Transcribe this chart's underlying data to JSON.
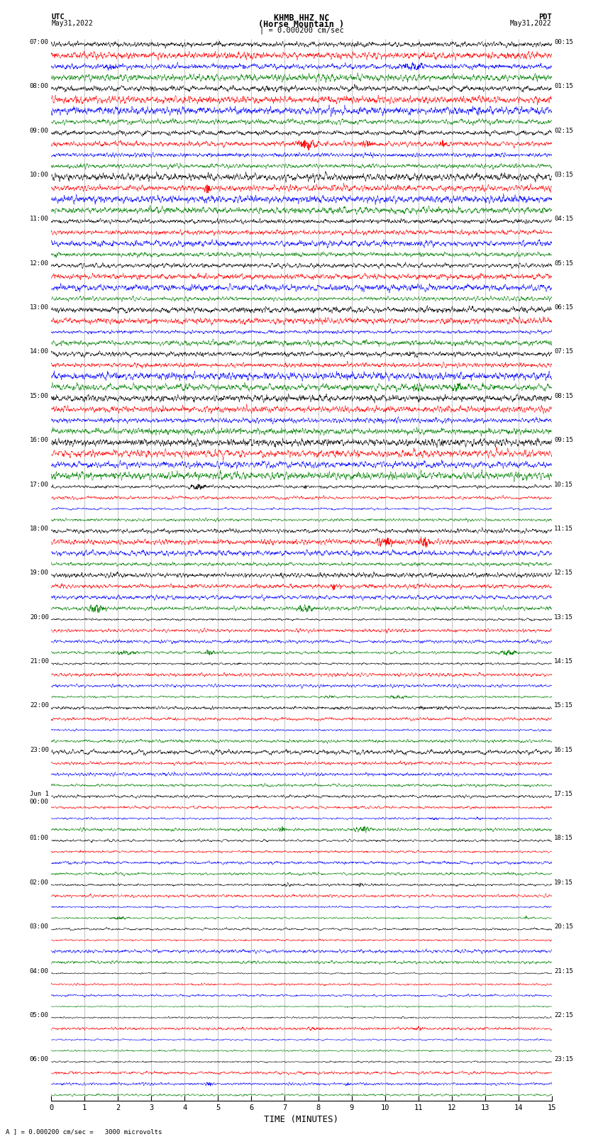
{
  "title_line1": "KHMB HHZ NC",
  "title_line2": "(Horse Mountain )",
  "scale_text": "| = 0.000200 cm/sec",
  "xlabel": "TIME (MINUTES)",
  "left_header_line1": "UTC",
  "left_header_line2": "May31,2022",
  "right_header_line1": "PDT",
  "right_header_line2": "May31,2022",
  "bottom_note": "A ] = 0.000200 cm/sec =   3000 microvolts",
  "fig_width": 8.5,
  "fig_height": 16.13,
  "bg_color": "#ffffff",
  "trace_colors": [
    "black",
    "red",
    "blue",
    "green"
  ],
  "grid_color": "#aaaaaa",
  "utc_group_labels": [
    "07:00",
    "08:00",
    "09:00",
    "10:00",
    "11:00",
    "12:00",
    "13:00",
    "14:00",
    "15:00",
    "16:00",
    "17:00",
    "18:00",
    "19:00",
    "20:00",
    "21:00",
    "22:00",
    "23:00",
    "Jun 1\n00:00",
    "01:00",
    "02:00",
    "03:00",
    "04:00",
    "05:00",
    "06:00"
  ],
  "pdt_group_labels": [
    "00:15",
    "01:15",
    "02:15",
    "03:15",
    "04:15",
    "05:15",
    "06:15",
    "07:15",
    "08:15",
    "09:15",
    "10:15",
    "11:15",
    "12:15",
    "13:15",
    "14:15",
    "15:15",
    "16:15",
    "17:15",
    "18:15",
    "19:15",
    "20:15",
    "21:15",
    "22:15",
    "23:15"
  ],
  "noise_seed": 42,
  "n_groups": 24,
  "n_traces_per_group": 4,
  "t_minutes": 15.0,
  "fs": 200
}
